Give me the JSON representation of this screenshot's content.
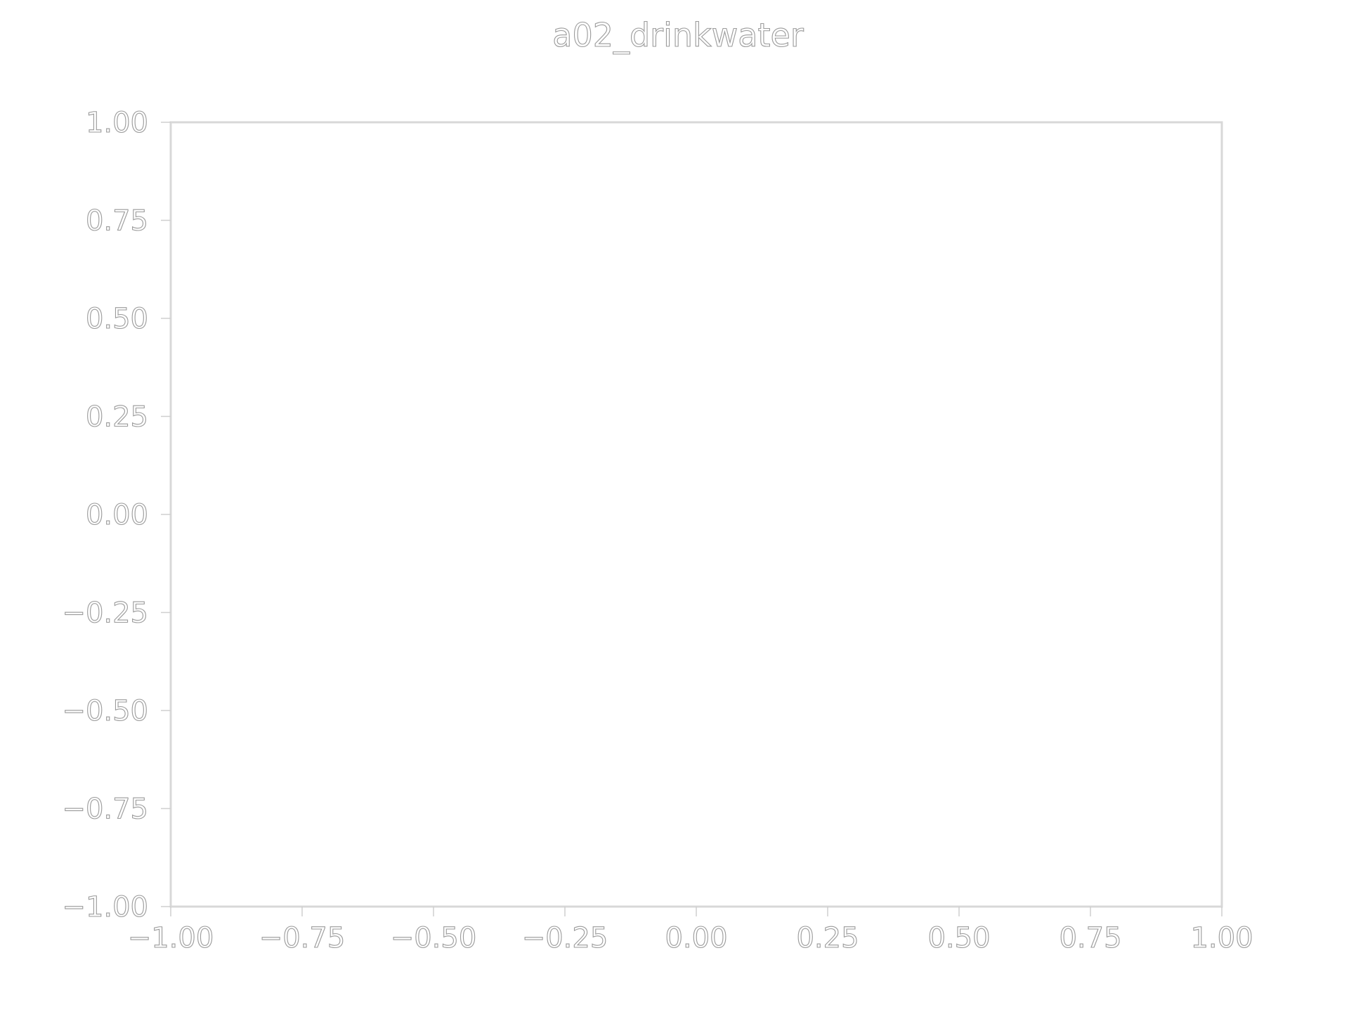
{
  "chart_data": {
    "type": "scatter",
    "title": "a02_drinkwater",
    "xlabel": "",
    "ylabel": "",
    "xlim": [
      -1.0,
      1.0
    ],
    "ylim": [
      -1.0,
      1.0
    ],
    "x_ticks": [
      -1.0,
      -0.75,
      -0.5,
      -0.25,
      0.0,
      0.25,
      0.5,
      0.75,
      1.0
    ],
    "x_tick_labels": [
      "−1.00",
      "−0.75",
      "−0.50",
      "−0.25",
      "0.00",
      "0.25",
      "0.50",
      "0.75",
      "1.00"
    ],
    "y_ticks": [
      1.0,
      0.75,
      0.5,
      0.25,
      0.0,
      -0.25,
      -0.5,
      -0.75,
      -1.0
    ],
    "y_tick_labels": [
      "1.00",
      "0.75",
      "0.50",
      "0.25",
      "0.00",
      "−0.25",
      "−0.50",
      "−0.75",
      "−1.00"
    ],
    "grid": false,
    "series": []
  },
  "colors": {
    "background": "#ffffff",
    "frame": "#d8d8d8",
    "text_outline": "#9a9a9a"
  }
}
